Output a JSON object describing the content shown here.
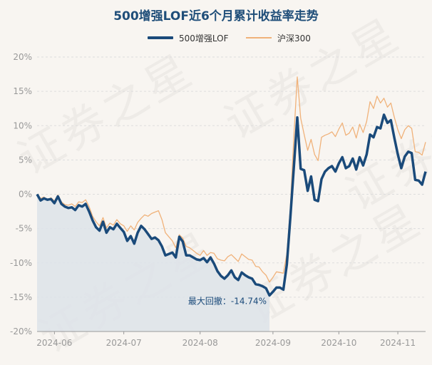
{
  "title": "500增强LOF近6个月累计收益率走势",
  "watermark": "证券之星",
  "colors": {
    "main": "#1a4a7a",
    "bench": "#f0b27a",
    "drawdown_fill": "#dde3e9",
    "grid": "#dddddd",
    "axis_text": "#999999",
    "title": "#1f4e79"
  },
  "chart_data": {
    "type": "line",
    "title": "500增强LOF近6个月累计收益率走势",
    "ylim": [
      -20,
      20
    ],
    "yticks": [
      -20,
      -15,
      -10,
      -5,
      0,
      5,
      10,
      15,
      20
    ],
    "ytick_labels": [
      "-20%",
      "-15%",
      "-10%",
      "-5%",
      "0%",
      "5%",
      "10%",
      "15%",
      "20%"
    ],
    "xticks": [
      {
        "label": "2024-06",
        "index": 5
      },
      {
        "label": "2024-07",
        "index": 25
      },
      {
        "label": "2024-08",
        "index": 47
      },
      {
        "label": "2024-09",
        "index": 68
      },
      {
        "label": "2024-10",
        "index": 87
      },
      {
        "label": "2024-11",
        "index": 104
      }
    ],
    "legend_position": "top-center",
    "grid": true,
    "series": [
      {
        "name": "500增强LOF",
        "values": [
          0,
          -0.9,
          -0.6,
          -0.8,
          -0.7,
          -1.3,
          -0.3,
          -1.4,
          -1.8,
          -2.0,
          -1.9,
          -2.3,
          -1.6,
          -1.8,
          -1.4,
          -2.5,
          -3.8,
          -4.8,
          -5.3,
          -4.0,
          -5.6,
          -4.8,
          -5.1,
          -4.3,
          -4.9,
          -5.5,
          -6.8,
          -6.1,
          -7.2,
          -5.6,
          -4.6,
          -5.1,
          -5.8,
          -6.5,
          -6.3,
          -6.7,
          -7.6,
          -8.9,
          -8.7,
          -8.5,
          -9.2,
          -6.2,
          -6.9,
          -8.9,
          -8.9,
          -9.2,
          -9.5,
          -9.6,
          -9.3,
          -9.9,
          -9.2,
          -10.1,
          -11.2,
          -11.9,
          -12.3,
          -11.8,
          -11.1,
          -12.1,
          -12.5,
          -11.4,
          -11.8,
          -12.1,
          -12.3,
          -13.1,
          -13.2,
          -13.4,
          -13.7,
          -14.74,
          -14.2,
          -13.6,
          -13.6,
          -13.9,
          -10.2,
          -3.5,
          3.8,
          11.2,
          3.7,
          3.5,
          0.5,
          2.6,
          -0.8,
          -1.0,
          2.2,
          3.3,
          3.8,
          4.1,
          3.3,
          4.5,
          5.4,
          3.8,
          4.1,
          5.2,
          3.6,
          5.4,
          4.2,
          5.8,
          8.7,
          8.3,
          9.8,
          9.6,
          11.6,
          10.4,
          10.8,
          8.2,
          5.8,
          3.8,
          5.5,
          6.2,
          6.0,
          2.1,
          2.0,
          1.4,
          3.3
        ]
      },
      {
        "name": "沪深300",
        "values": [
          0,
          -0.6,
          -0.4,
          -0.9,
          -0.5,
          -1.0,
          -0.1,
          -1.1,
          -1.5,
          -1.6,
          -1.4,
          -1.8,
          -1.1,
          -1.2,
          -0.8,
          -1.8,
          -3.2,
          -4.0,
          -4.6,
          -3.4,
          -4.9,
          -4.2,
          -4.5,
          -3.7,
          -4.3,
          -4.6,
          -5.4,
          -4.6,
          -5.2,
          -4.1,
          -3.5,
          -3.0,
          -3.2,
          -2.8,
          -2.6,
          -2.4,
          -3.7,
          -5.6,
          -6.2,
          -6.8,
          -7.8,
          -5.9,
          -6.4,
          -7.6,
          -7.8,
          -8.2,
          -8.6,
          -8.9,
          -8.2,
          -8.9,
          -8.5,
          -8.6,
          -9.4,
          -9.6,
          -9.7,
          -9.1,
          -8.8,
          -9.3,
          -9.8,
          -8.7,
          -9.1,
          -9.5,
          -9.6,
          -10.5,
          -10.6,
          -11.3,
          -11.8,
          -12.8,
          -12.1,
          -11.3,
          -11.4,
          -11.5,
          -8.7,
          -2.1,
          8.2,
          17.1,
          11.1,
          8.7,
          6.4,
          8.0,
          5.8,
          4.9,
          8.3,
          8.6,
          8.8,
          9.1,
          8.4,
          9.5,
          10.4,
          8.6,
          8.9,
          9.8,
          8.2,
          10.2,
          9.0,
          10.6,
          13.5,
          12.5,
          14.3,
          13.3,
          14.0,
          12.7,
          13.3,
          11.2,
          9.4,
          8.1,
          9.4,
          10.0,
          9.6,
          6.2,
          6.1,
          5.7,
          7.6
        ]
      }
    ],
    "annotation": {
      "text": "最大回撤：-14.74%",
      "index": 67,
      "value": -14.74
    },
    "drawdown_range": [
      0,
      67
    ]
  }
}
